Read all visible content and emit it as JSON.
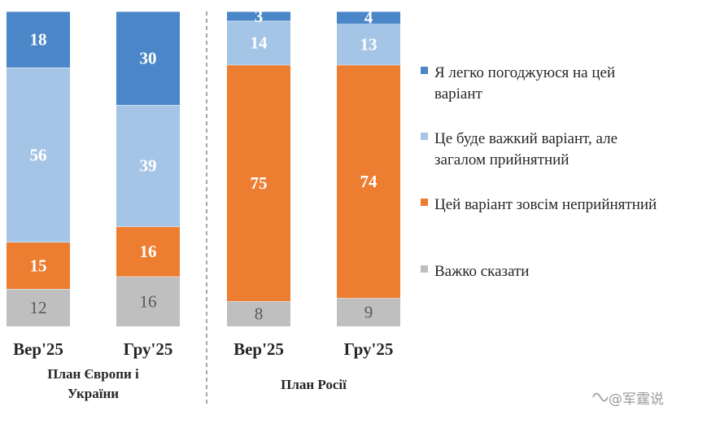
{
  "chart_data": {
    "type": "bar",
    "stacked": true,
    "orientation": "vertical",
    "grid": false,
    "legend_position": "right",
    "groups": [
      {
        "label": "План Європи і України",
        "label_lines": [
          "План Європи і",
          "України"
        ],
        "categories": [
          "Вер'25",
          "Гру'25"
        ]
      },
      {
        "label": "План Росії",
        "label_lines": [
          "План Росії"
        ],
        "categories": [
          "Вер'25",
          "Гру'25"
        ]
      }
    ],
    "categories": [
      "Вер'25",
      "Гру'25",
      "Вер'25",
      "Гру'25"
    ],
    "series": [
      {
        "name": "Я легко погоджуюся на цей варіант",
        "legend_lines": [
          "Я легко погоджуюся на цей",
          "варіант"
        ],
        "color": "#4a86c8",
        "values": [
          18,
          30,
          3,
          4
        ]
      },
      {
        "name": "Це буде важкий варіант, але загалом прийнятний",
        "legend_lines": [
          "Це буде важкий варіант, але",
          "загалом прийнятний"
        ],
        "color": "#a4c5e6",
        "values": [
          56,
          39,
          14,
          13
        ]
      },
      {
        "name": "Цей варіант зовсім неприйнятний",
        "legend_lines": [
          "Цей варіант зовсім неприйнятний"
        ],
        "color": "#ed7d31",
        "values": [
          15,
          16,
          75,
          74
        ]
      },
      {
        "name": "Важко сказати",
        "legend_lines": [
          "Важко сказати"
        ],
        "color": "#bfbfbf",
        "values": [
          12,
          16,
          8,
          9
        ]
      }
    ]
  },
  "watermark": "@军霆说"
}
